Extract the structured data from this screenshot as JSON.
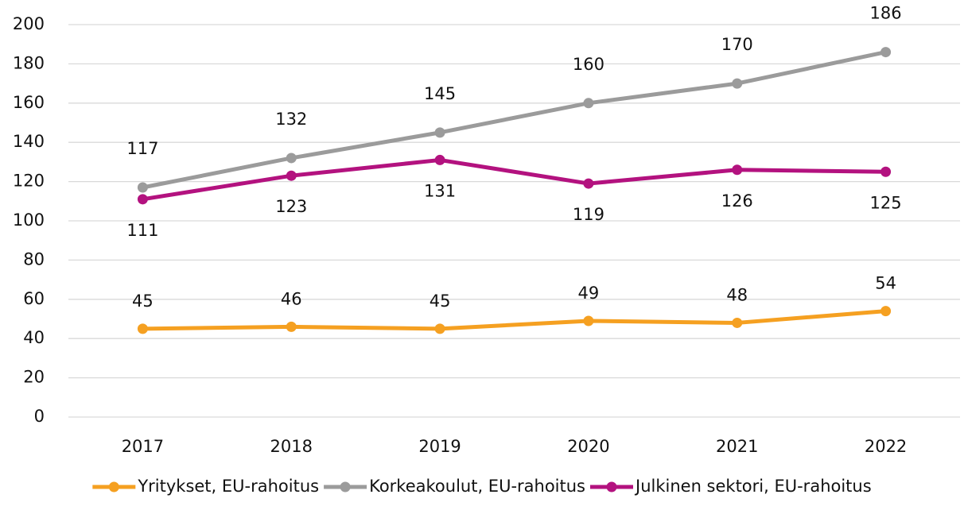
{
  "chart_data": {
    "type": "line",
    "categories": [
      "2017",
      "2018",
      "2019",
      "2020",
      "2021",
      "2022"
    ],
    "series": [
      {
        "name": "Yritykset, EU-rahoitus",
        "color": "#f5a021",
        "values": [
          45,
          46,
          45,
          49,
          48,
          54
        ]
      },
      {
        "name": "Korkeakoulut, EU-rahoitus",
        "color": "#9b9b9b",
        "values": [
          117,
          132,
          145,
          160,
          170,
          186
        ]
      },
      {
        "name": "Julkinen sektori, EU-rahoitus",
        "color": "#b3127f",
        "values": [
          111,
          123,
          131,
          119,
          126,
          125
        ]
      }
    ],
    "ylim": [
      0,
      200
    ],
    "yticks": [
      0,
      20,
      40,
      60,
      80,
      100,
      120,
      140,
      160,
      180,
      200
    ],
    "grid": true,
    "legend": "bottom"
  }
}
